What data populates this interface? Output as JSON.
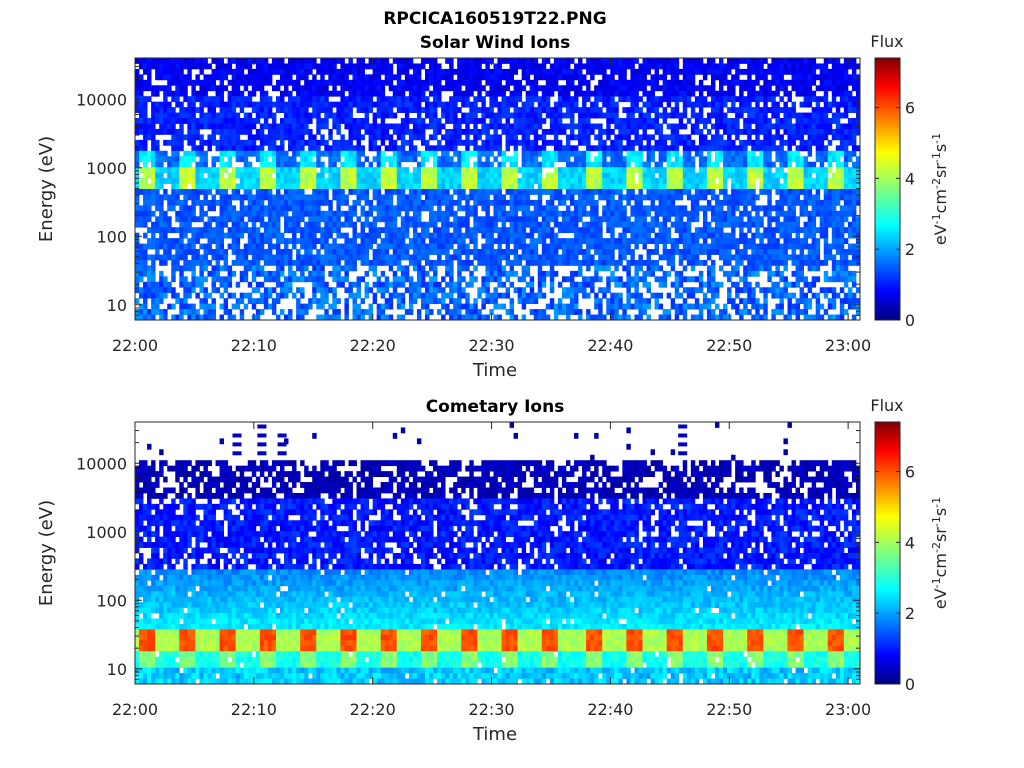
{
  "figure": {
    "title": "RPCICA160519T22.PNG"
  },
  "colors": {
    "no_data": "#ffffff",
    "axis": "#262626",
    "colormap": "jet"
  },
  "chart_data": [
    {
      "type": "heatmap",
      "title": "Solar Wind Ions",
      "xlabel": "Time",
      "ylabel": "Energy (eV)",
      "x_ticks": [
        "22:00",
        "22:10",
        "22:20",
        "22:30",
        "22:40",
        "22:50",
        "23:00"
      ],
      "x_range": [
        "22:00",
        "23:01"
      ],
      "y_scale": "log",
      "y_ticks": [
        10,
        100,
        1000,
        10000
      ],
      "y_tick_labels": [
        "10",
        "100",
        "1000",
        "10000"
      ],
      "y_range": [
        6,
        40000
      ],
      "colorbar": {
        "label": "Flux",
        "units": "eV-1cm-2sr-1s-1",
        "ticks": [
          0,
          2,
          4,
          6
        ],
        "range": [
          0,
          7.4
        ]
      },
      "features": [
        {
          "energy_eV": 700,
          "typical_flux": 3.6,
          "periodic_minutes": 3.4
        },
        {
          "energy_eV": 1400,
          "typical_flux": 2.6,
          "periodic_minutes": 3.4
        },
        {
          "energy_eV": 25,
          "typical_flux": 1.8,
          "note": "sparse"
        }
      ]
    },
    {
      "type": "heatmap",
      "title": "Cometary Ions",
      "xlabel": "Time",
      "ylabel": "Energy (eV)",
      "x_ticks": [
        "22:00",
        "22:10",
        "22:20",
        "22:30",
        "22:40",
        "22:50",
        "23:00"
      ],
      "x_range": [
        "22:00",
        "23:01"
      ],
      "y_scale": "log",
      "y_ticks": [
        10,
        100,
        1000,
        10000
      ],
      "y_tick_labels": [
        "10",
        "100",
        "1000",
        "10000"
      ],
      "y_range": [
        6,
        40000
      ],
      "colorbar": {
        "label": "Flux",
        "units": "eV-1cm-2sr-1s-1",
        "ticks": [
          0,
          2,
          4,
          6
        ],
        "range": [
          0,
          7.4
        ]
      },
      "features": [
        {
          "energy_eV": 25,
          "typical_flux": 5.0,
          "peak_flux": 6.0,
          "periodic_minutes": 3.4
        },
        {
          "energy_eV": 15,
          "typical_flux": 3.2,
          "periodic_minutes": 3.4
        },
        {
          "energy_eV": 10000,
          "typical_flux": 0.2,
          "note": "upper energy cutoff"
        }
      ]
    }
  ]
}
